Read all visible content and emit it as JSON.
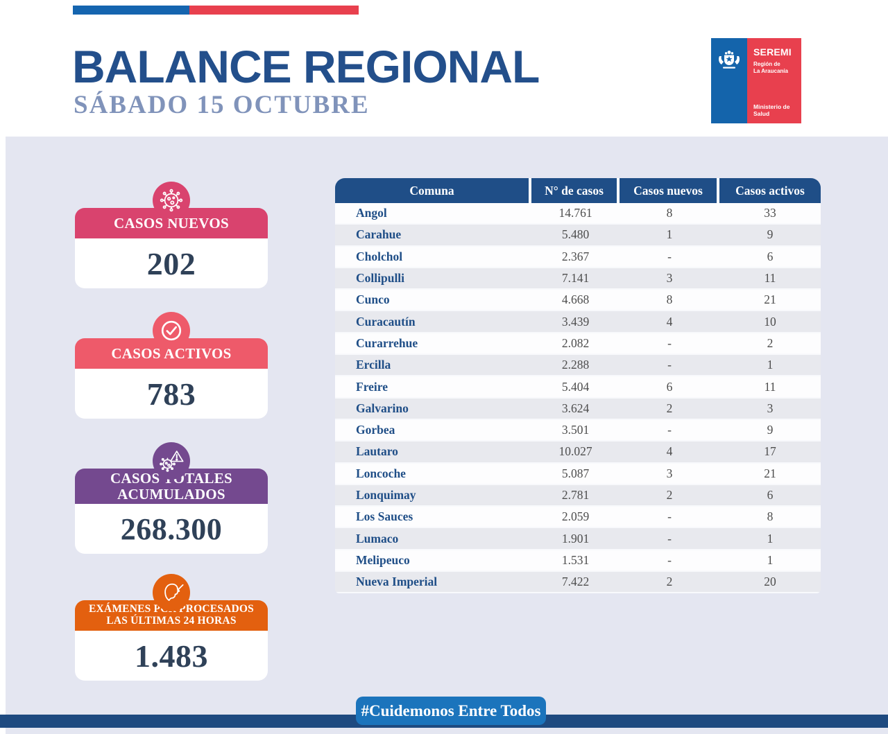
{
  "header": {
    "title": "BALANCE REGIONAL",
    "subtitle": "SÁBADO 15 OCTUBRE",
    "logo": {
      "org": "SEREMI",
      "region_line1": "Región de",
      "region_line2": "La Araucanía",
      "ministry": "Ministerio de Salud"
    }
  },
  "stats": [
    {
      "label_line1": "CASOS NUEVOS",
      "label_line2": "",
      "value": "202",
      "color": "#d9436e",
      "icon": "virus-icon"
    },
    {
      "label_line1": "CASOS ACTIVOS",
      "label_line2": "",
      "value": "783",
      "color": "#ee5a6a",
      "icon": "check-circle-icon"
    },
    {
      "label_line1": "CASOS TOTALES",
      "label_line2": "ACUMULADOS",
      "value": "268.300",
      "color": "#74498f",
      "icon": "virus-warning-icon"
    },
    {
      "label_line1": "EXÁMENES PCR PROCESADOS",
      "label_line2": "LAS ÚLTIMAS 24 HORAS",
      "value": "1.483",
      "color": "#e3600f",
      "icon": "pcr-swab-icon"
    }
  ],
  "table": {
    "columns": [
      "Comuna",
      "N° de casos",
      "Casos nuevos",
      "Casos activos"
    ],
    "rows": [
      [
        "Angol",
        "14.761",
        "8",
        "33"
      ],
      [
        "Carahue",
        "5.480",
        "1",
        "9"
      ],
      [
        "Cholchol",
        "2.367",
        "-",
        "6"
      ],
      [
        "Collipulli",
        "7.141",
        "3",
        "11"
      ],
      [
        "Cunco",
        "4.668",
        "8",
        "21"
      ],
      [
        "Curacautín",
        "3.439",
        "4",
        "10"
      ],
      [
        "Curarrehue",
        "2.082",
        "-",
        "2"
      ],
      [
        "Ercilla",
        "2.288",
        "-",
        "1"
      ],
      [
        "Freire",
        "5.404",
        "6",
        "11"
      ],
      [
        "Galvarino",
        "3.624",
        "2",
        "3"
      ],
      [
        "Gorbea",
        "3.501",
        "-",
        "9"
      ],
      [
        "Lautaro",
        "10.027",
        "4",
        "17"
      ],
      [
        "Loncoche",
        "5.087",
        "3",
        "21"
      ],
      [
        "Lonquimay",
        "2.781",
        "2",
        "6"
      ],
      [
        "Los Sauces",
        "2.059",
        "-",
        "8"
      ],
      [
        "Lumaco",
        "1.901",
        "-",
        "1"
      ],
      [
        "Melipeuco",
        "1.531",
        "-",
        "1"
      ],
      [
        "Nueva Imperial",
        "7.422",
        "2",
        "20"
      ]
    ]
  },
  "footer": {
    "hashtag": "#Cuidemonos Entre Todos"
  },
  "colors": {
    "navy": "#1f4e87",
    "title_blue": "#234f8b",
    "subtitle_blue": "#8093ba",
    "flag_blue": "#1565af",
    "flag_red": "#e8404e",
    "badge_blue": "#1b74bc",
    "bottom_bar_navy": "#1e4a80",
    "background_lavender": "#e4e6f1",
    "value_text": "#2f4158",
    "stat_pink": "#d9436e",
    "stat_red": "#ee5a6a",
    "stat_purple": "#74498f",
    "stat_orange": "#e3600f"
  }
}
